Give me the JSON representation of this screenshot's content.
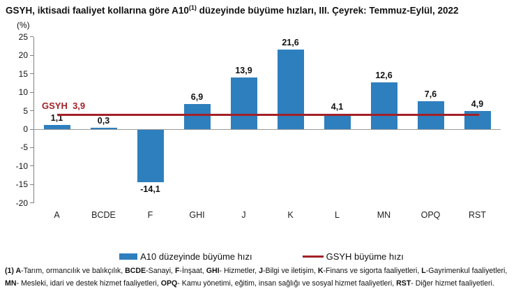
{
  "title": {
    "pre": "GSYH, iktisadi faaliyet kollarına göre A10",
    "sup": "(1)",
    "post": " düzeyinde büyüme hızları, III. Çeyrek: Temmuz-Eylül, 2022"
  },
  "axis_unit": "(%)",
  "chart_data": {
    "type": "bar",
    "title": "GSYH, iktisadi faaliyet kollarına göre A10(1) düzeyinde büyüme hızları, III. Çeyrek: Temmuz-Eylül, 2022",
    "ylabel": "(%)",
    "xlabel": "",
    "categories": [
      "A",
      "BCDE",
      "F",
      "GHI",
      "J",
      "K",
      "L",
      "MN",
      "OPQ",
      "RST"
    ],
    "values": [
      1.1,
      0.3,
      -14.1,
      6.9,
      13.9,
      21.6,
      4.1,
      12.6,
      7.6,
      4.9
    ],
    "value_labels": [
      "1,1",
      "0,3",
      "-14,1",
      "6,9",
      "13,9",
      "21,6",
      "4,1",
      "12,6",
      "7,6",
      "4,9"
    ],
    "yticks": [
      25,
      20,
      15,
      10,
      5,
      0,
      -5,
      -10,
      -15,
      -20
    ],
    "ylim": [
      -20,
      25
    ],
    "grid": false,
    "bar_color": "#2E7FBE",
    "reference_line": {
      "label": "GSYH",
      "value": 3.9,
      "value_label": "3,9",
      "color": "#A32026"
    },
    "legend_position": "bottom"
  },
  "legend": [
    {
      "label": "A10 düzeyinde büyüme hızı",
      "swatch": "bar",
      "color": "#2E7FBE"
    },
    {
      "label": "GSYH büyüme hızı",
      "swatch": "line",
      "color": "#A32026"
    }
  ],
  "footnote": {
    "lines": [
      [
        {
          "t": "(1) A",
          "b": true
        },
        {
          "t": "-Tarım, ormancılık ve balıkçılık, ",
          "b": false
        },
        {
          "t": "BCDE",
          "b": true
        },
        {
          "t": "-Sanayi, ",
          "b": false
        },
        {
          "t": "F",
          "b": true
        },
        {
          "t": "-İnşaat, ",
          "b": false
        },
        {
          "t": "GHI",
          "b": true
        },
        {
          "t": "- Hizmetler, ",
          "b": false
        },
        {
          "t": "J",
          "b": true
        },
        {
          "t": "-Bilgi ve iletişim, ",
          "b": false
        },
        {
          "t": "K",
          "b": true
        },
        {
          "t": "-Finans ve sigorta faaliyetleri, ",
          "b": false
        },
        {
          "t": "L",
          "b": true
        },
        {
          "t": "-Gayrimenkul faaliyetleri,",
          "b": false
        }
      ],
      [
        {
          "t": "MN",
          "b": true
        },
        {
          "t": "- Mesleki, idari ve destek hizmet faaliyetleri, ",
          "b": false
        },
        {
          "t": "OPQ",
          "b": true
        },
        {
          "t": "- Kamu yönetimi, eğitim, insan sağlığı ve sosyal hizmet faaliyetleri, ",
          "b": false
        },
        {
          "t": "RST",
          "b": true
        },
        {
          "t": "- Diğer hizmet faaliyetleri.",
          "b": false
        }
      ]
    ]
  }
}
